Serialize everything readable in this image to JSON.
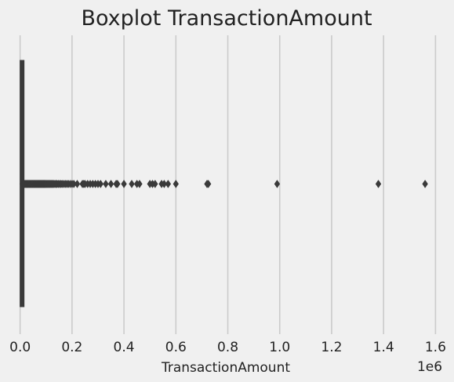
{
  "chart_data": {
    "type": "boxplot",
    "orientation": "horizontal",
    "title": "Boxplot TransactionAmount",
    "xlabel": "TransactionAmount",
    "ylabel": "",
    "axis_offset_label": "1e6",
    "xlim": [
      -0.008,
      1.62
    ],
    "x_ticks": [
      0.0,
      0.2,
      0.4,
      0.6,
      0.8,
      1.0,
      1.2,
      1.4,
      1.6
    ],
    "x_tick_labels": [
      "0.0",
      "0.2",
      "0.4",
      "0.6",
      "0.8",
      "1.0",
      "1.2",
      "1.4",
      "1.6"
    ],
    "grid": "vertical",
    "box": {
      "min": 0.0,
      "q1": 0.0008,
      "median": 0.002,
      "q3": 0.004,
      "whisker_high": 0.0085
    },
    "outliers": [
      0.009,
      0.011,
      0.013,
      0.015,
      0.017,
      0.019,
      0.021,
      0.023,
      0.025,
      0.027,
      0.029,
      0.031,
      0.033,
      0.035,
      0.037,
      0.039,
      0.041,
      0.043,
      0.045,
      0.047,
      0.049,
      0.051,
      0.053,
      0.055,
      0.057,
      0.059,
      0.061,
      0.063,
      0.065,
      0.067,
      0.069,
      0.071,
      0.073,
      0.075,
      0.077,
      0.079,
      0.081,
      0.083,
      0.085,
      0.087,
      0.089,
      0.091,
      0.093,
      0.095,
      0.097,
      0.099,
      0.102,
      0.105,
      0.108,
      0.111,
      0.114,
      0.117,
      0.12,
      0.123,
      0.126,
      0.13,
      0.134,
      0.138,
      0.142,
      0.147,
      0.152,
      0.157,
      0.162,
      0.168,
      0.174,
      0.18,
      0.186,
      0.193,
      0.2,
      0.207,
      0.22,
      0.24,
      0.245,
      0.25,
      0.26,
      0.27,
      0.28,
      0.29,
      0.3,
      0.31,
      0.33,
      0.35,
      0.37,
      0.375,
      0.4,
      0.43,
      0.45,
      0.46,
      0.5,
      0.51,
      0.52,
      0.545,
      0.555,
      0.57,
      0.6,
      0.72,
      0.725,
      0.99,
      1.38,
      1.56
    ]
  },
  "colors": {
    "background": "#f0f0f0",
    "grid": "#cbcbcb",
    "box": "#3a3a3a",
    "text": "#222222"
  }
}
